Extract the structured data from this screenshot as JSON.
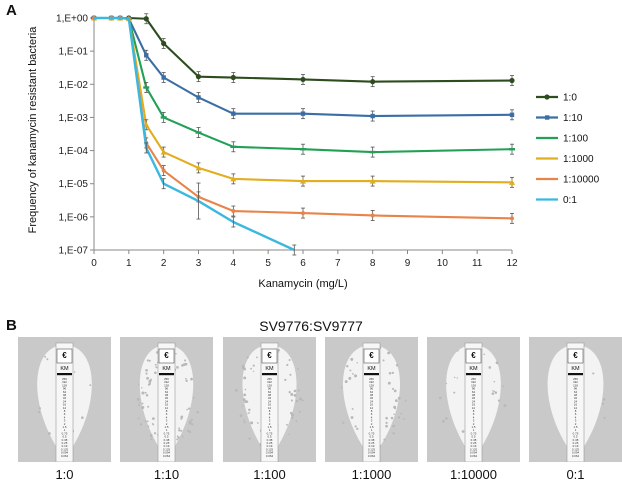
{
  "panels": {
    "a": "A",
    "b": "B"
  },
  "chart_data": {
    "type": "line",
    "title": "",
    "xlabel": "Kanamycin (mg/L)",
    "ylabel": "Frequency of kanamycin resistant bacteria",
    "xlim": [
      0,
      12
    ],
    "ylim_log10": [
      -7,
      0
    ],
    "x_ticks": [
      "0",
      "1",
      "2",
      "3",
      "4",
      "5",
      "6",
      "7",
      "8",
      "9",
      "10",
      "11",
      "12"
    ],
    "y_tick_labels": [
      "1,E+00",
      "1,E-01",
      "1,E-02",
      "1,E-03",
      "1,E-04",
      "1,E-05",
      "1,E-06",
      "1,E-07"
    ],
    "legend_position": "right",
    "series": [
      {
        "name": "1:0",
        "color": "#2e4d1f",
        "marker": "circle",
        "x": [
          0,
          0.5,
          0.75,
          1,
          1.5,
          2,
          3,
          4,
          6,
          8,
          12
        ],
        "y": [
          1,
          1,
          1,
          1,
          0.95,
          0.17,
          0.017,
          0.016,
          0.014,
          0.012,
          0.013
        ]
      },
      {
        "name": "1:10",
        "color": "#3a6ea5",
        "marker": "square",
        "x": [
          0,
          0.5,
          0.75,
          1,
          1.5,
          2,
          3,
          4,
          6,
          8,
          12
        ],
        "y": [
          1,
          1,
          1,
          0.95,
          0.075,
          0.016,
          0.004,
          0.0013,
          0.0013,
          0.0011,
          0.0012
        ]
      },
      {
        "name": "1:100",
        "color": "#22a055",
        "marker": "dash",
        "x": [
          0,
          0.5,
          0.75,
          1,
          1.5,
          2,
          3,
          4,
          6,
          8,
          12
        ],
        "y": [
          1,
          1,
          1,
          0.95,
          0.008,
          0.001,
          0.00035,
          0.00013,
          0.00011,
          9e-05,
          0.00011
        ]
      },
      {
        "name": "1:1000",
        "color": "#e2ad1e",
        "marker": "triangle",
        "x": [
          0,
          0.5,
          0.75,
          1,
          1.5,
          2,
          3,
          4,
          6,
          8,
          12
        ],
        "y": [
          1,
          1,
          1,
          0.95,
          0.0006,
          9e-05,
          3e-05,
          1.4e-05,
          1.2e-05,
          1.2e-05,
          1.1e-05
        ]
      },
      {
        "name": "1:10000",
        "color": "#e8834a",
        "marker": "x",
        "x": [
          0,
          0.5,
          0.75,
          1,
          1.5,
          2,
          3,
          4,
          6,
          8,
          12
        ],
        "y": [
          1,
          1,
          1,
          0.95,
          0.00017,
          2.5e-05,
          4e-06,
          1.5e-06,
          1.3e-06,
          1.1e-06,
          9e-07
        ]
      },
      {
        "name": "0:1",
        "color": "#3ab8e0",
        "marker": "none",
        "x": [
          0,
          0.5,
          0.75,
          1,
          1.5,
          2,
          3,
          4,
          5.75
        ],
        "y": [
          1,
          1,
          1,
          0.95,
          0.00012,
          1e-05,
          3e-06,
          7e-07,
          1e-07
        ]
      }
    ]
  },
  "panel_b": {
    "title": "SV9776:SV9777",
    "strip_brand": "KM",
    "plates": [
      {
        "label": "1:0",
        "halo": 0.86,
        "speckle": 0.05
      },
      {
        "label": "1:10",
        "halo": 0.84,
        "speckle": 0.4
      },
      {
        "label": "1:100",
        "halo": 0.85,
        "speckle": 0.3
      },
      {
        "label": "1:1000",
        "halo": 0.9,
        "speckle": 0.25
      },
      {
        "label": "1:10000",
        "halo": 0.86,
        "speckle": 0.1
      },
      {
        "label": "0:1",
        "halo": 0.88,
        "speckle": 0.02
      }
    ],
    "strip_scale": [
      "256",
      "192",
      "128",
      "96",
      "64",
      "48",
      "32",
      "24",
      "16",
      "12",
      "8",
      "6",
      "4",
      "3",
      "2",
      "1.5",
      "1",
      "0.75",
      "0.5",
      "0.38",
      "0.25",
      "0.19",
      "0.125",
      "0.094",
      "0.064"
    ]
  },
  "colors": {
    "axis": "#888888",
    "plate_bg": "#c9c9c9",
    "halo": "#f3f3f3",
    "strip": "#f7f7f7"
  }
}
